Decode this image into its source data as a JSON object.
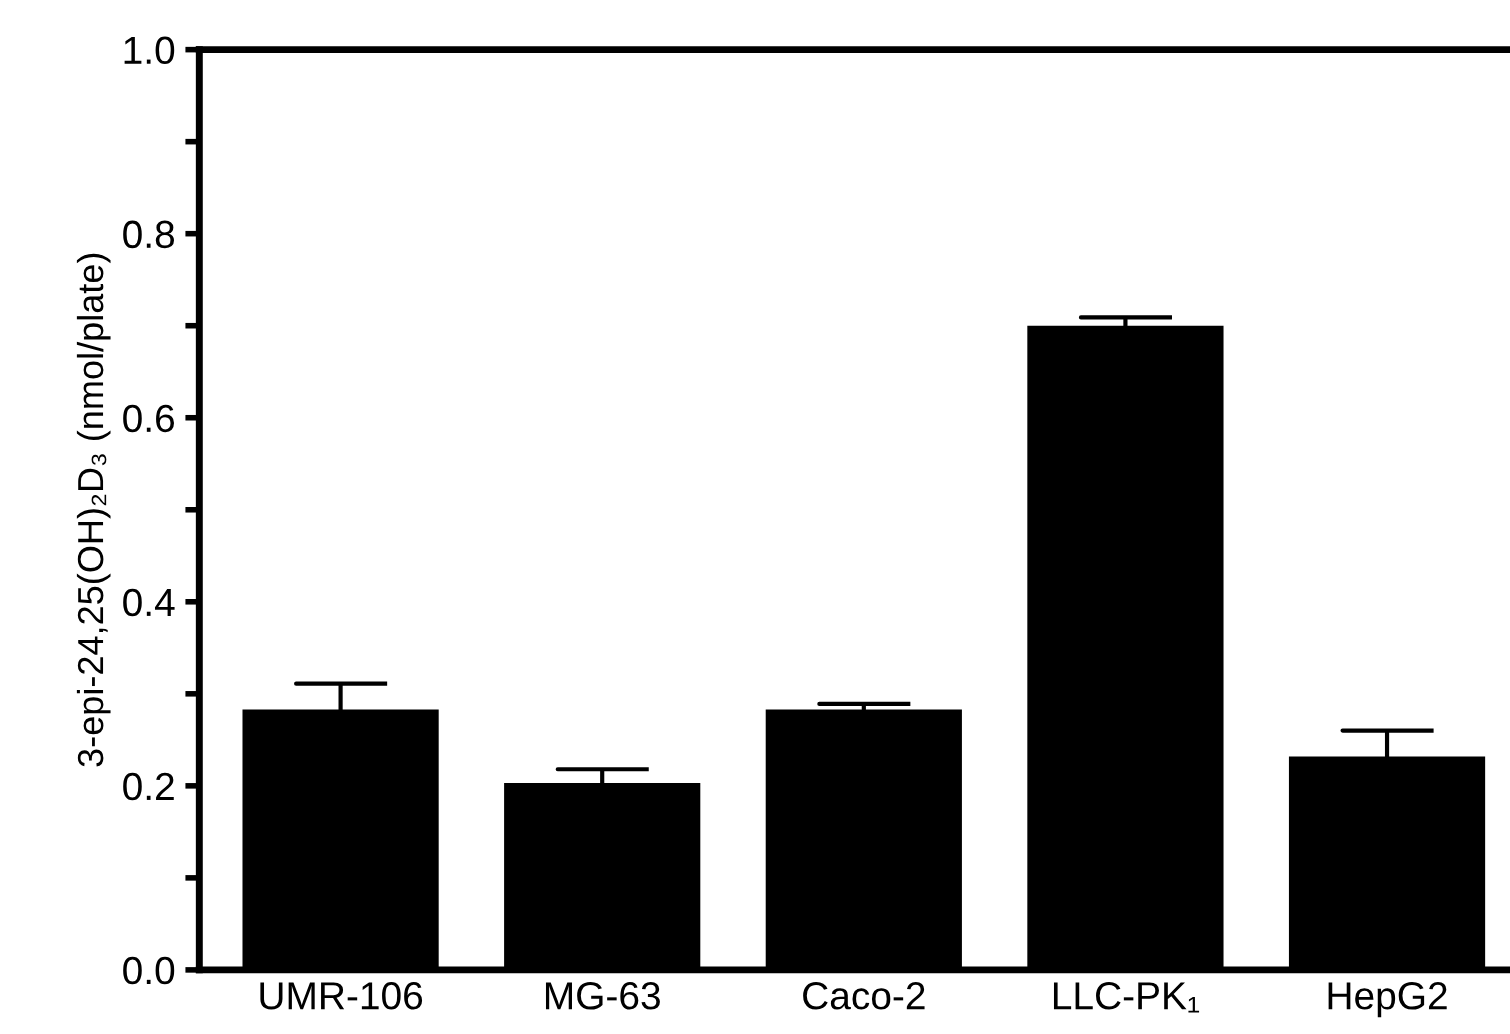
{
  "chart_data": {
    "type": "bar",
    "ylabel": "3-epi-24,25(OH)₂D₃ (nmol/plate)",
    "categories": [
      "UMR-106",
      "MG-63",
      "Caco-2",
      "LLC-PK₁",
      "HepG2"
    ],
    "values": [
      0.283,
      0.203,
      0.283,
      0.7,
      0.232
    ],
    "errors": [
      [
        0.283,
        0.311
      ],
      [
        0.203,
        0.218
      ],
      [
        0.283,
        0.289
      ],
      [
        0.7,
        0.709
      ],
      [
        0.232,
        0.26
      ]
    ],
    "color": "#000000",
    "ylim": [
      0,
      1.0
    ],
    "yticks": [
      {
        "value": 0,
        "label": "0.0"
      },
      {
        "value": 0.1,
        "label": null
      },
      {
        "value": 0.2,
        "label": "0.2"
      },
      {
        "value": 0.3,
        "label": null
      },
      {
        "value": 0.4,
        "label": "0.4"
      },
      {
        "value": 0.5,
        "label": null
      },
      {
        "value": 0.6,
        "label": "0.6"
      },
      {
        "value": 0.7,
        "label": null
      },
      {
        "value": 0.8,
        "label": "0.8"
      },
      {
        "value": 0.9,
        "label": null
      },
      {
        "value": 1.0,
        "label": "1.0"
      }
    ],
    "grid": false
  }
}
